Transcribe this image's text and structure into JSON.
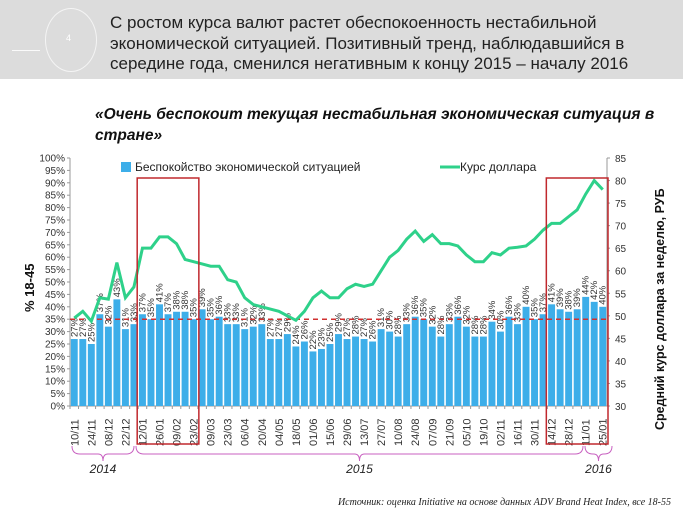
{
  "header": {
    "slide_number": "4",
    "title": "С ростом курса валют растет обеспокоенность нестабильной экономической ситуацией. Позитивный тренд, наблюдавшийся в середине года, сменился негативным к концу 2015 – началу 2016"
  },
  "source": "Источник: оценка Initiative на основе данных ADV Brand Heat Index, все 18-55",
  "chart_data": {
    "type": "bar+line",
    "title": "«Очень беспокоит текущая нестабильная экономическая ситуация в стране»",
    "ylabel": "% 18-45",
    "y2label": "Средний курс доллара за неделю, РУБ",
    "ylim": [
      0,
      100
    ],
    "y2lim": [
      30,
      85
    ],
    "yticks": [
      "0%",
      "5%",
      "10%",
      "15%",
      "20%",
      "25%",
      "30%",
      "35%",
      "40%",
      "45%",
      "50%",
      "55%",
      "60%",
      "65%",
      "70%",
      "75%",
      "80%",
      "85%",
      "90%",
      "95%",
      "100%"
    ],
    "y2ticks": [
      "30",
      "35",
      "40",
      "45",
      "50",
      "55",
      "60",
      "65",
      "70",
      "75",
      "80",
      "85"
    ],
    "xtick_labels": [
      "10/11",
      "24/11",
      "08/12",
      "22/12",
      "12/01",
      "26/01",
      "09/02",
      "23/02",
      "09/03",
      "23/03",
      "06/04",
      "20/04",
      "04/05",
      "18/05",
      "01/06",
      "15/06",
      "29/06",
      "13/07",
      "27/07",
      "10/08",
      "24/08",
      "07/09",
      "21/09",
      "05/10",
      "19/10",
      "02/11",
      "16/11",
      "30/11",
      "14/12",
      "28/12",
      "11/01",
      "25/01"
    ],
    "years": [
      "2014",
      "2015",
      "2016"
    ],
    "series": [
      {
        "name": "Беспокойство экономической ситуацией",
        "type": "bar",
        "color": "#3daee9",
        "axis": "left",
        "values": [
          27,
          27,
          25,
          37,
          32,
          43,
          31,
          33,
          37,
          35,
          41,
          37,
          38,
          38,
          35,
          39,
          35,
          36,
          33,
          33,
          31,
          32,
          33,
          27,
          27,
          29,
          24,
          26,
          22,
          23,
          25,
          29,
          27,
          28,
          27,
          26,
          31,
          30,
          28,
          33,
          36,
          35,
          32,
          28,
          33,
          36,
          32,
          28,
          28,
          34,
          30,
          36,
          33,
          40,
          35,
          37,
          41,
          39,
          38,
          39,
          44,
          42,
          40
        ]
      },
      {
        "name": "Курс доллара",
        "type": "line",
        "color": "#2ed18a",
        "axis": "right",
        "values": [
          49.5,
          51,
          48.8,
          54,
          53.7,
          61.8,
          54,
          56.4,
          65,
          65,
          67.5,
          67.5,
          66,
          62.5,
          62,
          61.5,
          61,
          61,
          58,
          57.5,
          54,
          52.5,
          52,
          51.5,
          51,
          50,
          49,
          51,
          54,
          55.5,
          54,
          54,
          56,
          57,
          56.5,
          57,
          60,
          63,
          64.5,
          67,
          68.8,
          66.5,
          68,
          66,
          66,
          65.5,
          63.5,
          62,
          62,
          64,
          63.5,
          65,
          65.2,
          65.5,
          67,
          69,
          70.5,
          70.5,
          72,
          73.5,
          77,
          80,
          78
        ]
      }
    ],
    "reference_line": {
      "value_percent": 35,
      "style": "dashed",
      "color": "#d03030"
    },
    "highlight_ranges": [
      [
        "12/01",
        "23/02"
      ],
      [
        "14/12",
        "25/01"
      ]
    ]
  }
}
